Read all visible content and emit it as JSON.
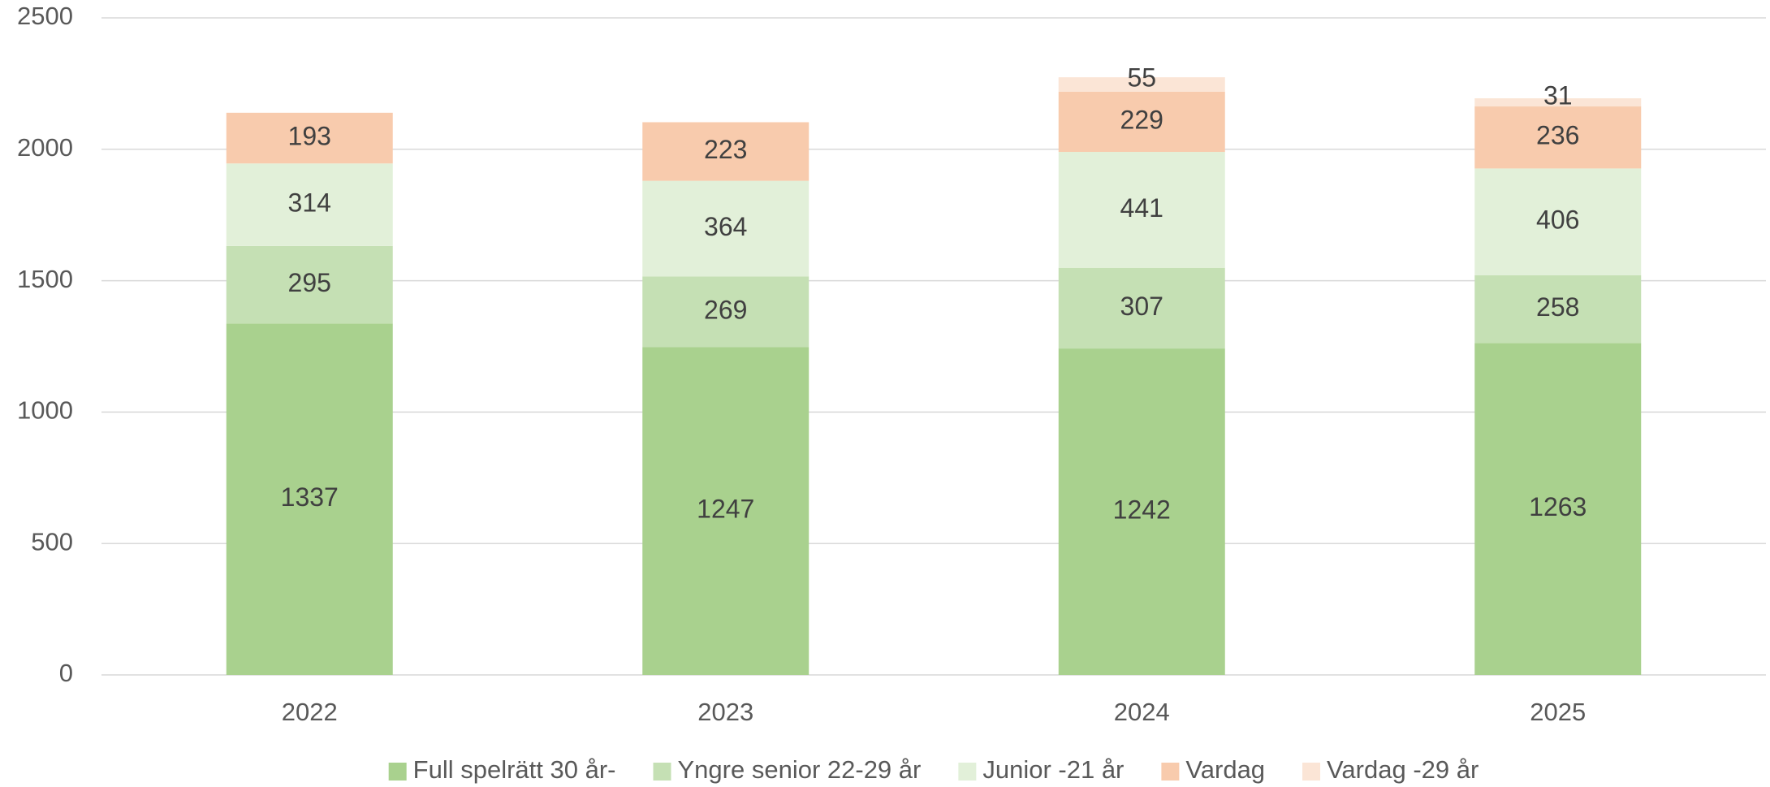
{
  "chart_data": {
    "type": "stacked_bar",
    "categories": [
      "2022",
      "2023",
      "2024",
      "2025"
    ],
    "series": [
      {
        "name": "Full spelrätt 30 år-",
        "color": "#a9d18e",
        "values": [
          1337,
          1247,
          1242,
          1263
        ]
      },
      {
        "name": "Yngre senior 22-29 år",
        "color": "#c5e0b4",
        "values": [
          295,
          269,
          307,
          258
        ]
      },
      {
        "name": "Junior -21 år",
        "color": "#e2f0d9",
        "values": [
          314,
          364,
          441,
          406
        ]
      },
      {
        "name": "Vardag",
        "color": "#f8cbad",
        "values": [
          193,
          223,
          229,
          236
        ]
      },
      {
        "name": "Vardag -29 år",
        "color": "#fbe5d6",
        "values": [
          null,
          null,
          55,
          31
        ]
      }
    ],
    "ylim": [
      0,
      2500
    ],
    "yticks": [
      0,
      500,
      1000,
      1500,
      2000,
      2500
    ],
    "grid": true,
    "legend": "bottom"
  }
}
